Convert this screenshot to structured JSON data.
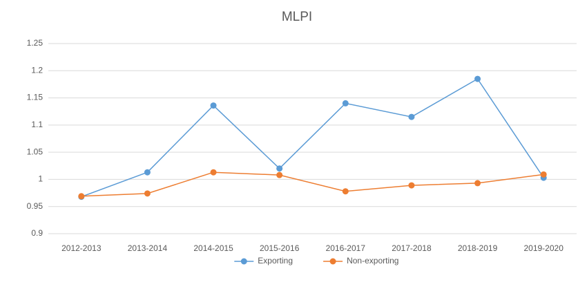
{
  "chart_data": {
    "type": "line",
    "title": "MLPI",
    "categories": [
      "2012-2013",
      "2013-2014",
      "2014-2015",
      "2015-2016",
      "2016-2017",
      "2017-2018",
      "2018-2019",
      "2019-2020"
    ],
    "series": [
      {
        "name": "Exporting",
        "color": "#5b9bd5",
        "values": [
          0.968,
          1.013,
          1.136,
          1.02,
          1.14,
          1.115,
          1.185,
          1.003
        ]
      },
      {
        "name": "Non-exporting",
        "color": "#ed7d31",
        "values": [
          0.969,
          0.974,
          1.013,
          1.008,
          0.978,
          0.989,
          0.993,
          1.009
        ]
      }
    ],
    "ylim": [
      0.9,
      1.25
    ],
    "yticks": [
      0.9,
      0.95,
      1,
      1.05,
      1.1,
      1.15,
      1.2,
      1.25
    ],
    "grid": true,
    "legend": "bottom"
  }
}
